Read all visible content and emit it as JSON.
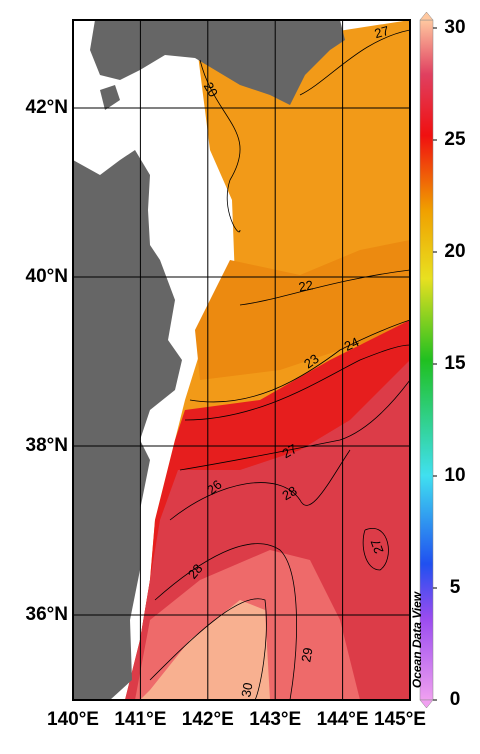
{
  "map": {
    "latitude_labels": [
      "42°N",
      "40°N",
      "38°N",
      "36°N"
    ],
    "longitude_labels": [
      "140°E",
      "141°E",
      "142°E",
      "143°E",
      "144°E",
      "145°E"
    ],
    "colorbar": {
      "range": [
        0,
        30
      ],
      "ticks": [
        0,
        5,
        10,
        15,
        20,
        25,
        30
      ]
    },
    "contour_labels": [
      "27",
      "20",
      "22",
      "23",
      "24",
      "27",
      "26",
      "28",
      "28",
      "27",
      "29",
      "30"
    ],
    "watermark": "Ocean Data View"
  }
}
